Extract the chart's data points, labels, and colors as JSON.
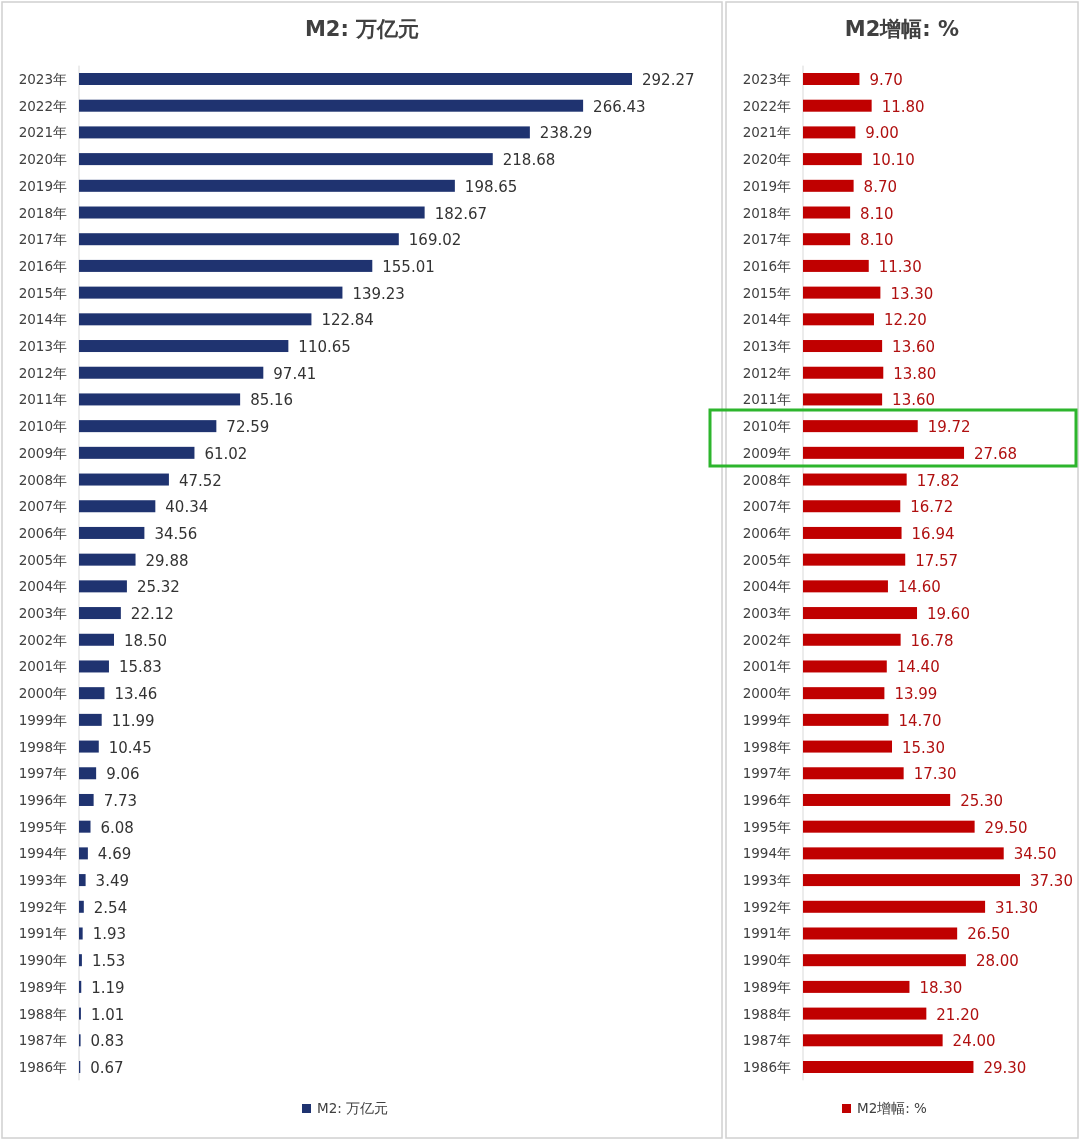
{
  "chart_data": [
    {
      "type": "bar",
      "orientation": "horizontal",
      "title": "M2: 万亿元",
      "legend": "bottom",
      "categories": [
        "2023年",
        "2022年",
        "2021年",
        "2020年",
        "2019年",
        "2018年",
        "2017年",
        "2016年",
        "2015年",
        "2014年",
        "2013年",
        "2012年",
        "2011年",
        "2010年",
        "2009年",
        "2008年",
        "2007年",
        "2006年",
        "2005年",
        "2004年",
        "2003年",
        "2002年",
        "2001年",
        "2000年",
        "1999年",
        "1998年",
        "1997年",
        "1996年",
        "1995年",
        "1994年",
        "1993年",
        "1992年",
        "1991年",
        "1990年",
        "1989年",
        "1988年",
        "1987年",
        "1986年"
      ],
      "series": [
        {
          "name": "M2: 万亿元",
          "color": "#1f3370",
          "values": [
            292.27,
            266.43,
            238.29,
            218.68,
            198.65,
            182.67,
            169.02,
            155.01,
            139.23,
            122.84,
            110.65,
            97.41,
            85.16,
            72.59,
            61.02,
            47.52,
            40.34,
            34.56,
            29.88,
            25.32,
            22.12,
            18.5,
            15.83,
            13.46,
            11.99,
            10.45,
            9.06,
            7.73,
            6.08,
            4.69,
            3.49,
            2.54,
            1.93,
            1.53,
            1.19,
            1.01,
            0.83,
            0.67
          ],
          "value_labels": [
            "292.27",
            "266.43",
            "238.29",
            "218.68",
            "198.65",
            "182.67",
            "169.02",
            "155.01",
            "139.23",
            "122.84",
            "110.65",
            "97.41",
            "85.16",
            "72.59",
            "61.02",
            "47.52",
            "40.34",
            "34.56",
            "29.88",
            "25.32",
            "22.12",
            "18.50",
            "15.83",
            "13.46",
            "11.99",
            "10.45",
            "9.06",
            "7.73",
            "6.08",
            "4.69",
            "3.49",
            "2.54",
            "1.93",
            "1.53",
            "1.19",
            "1.01",
            "0.83",
            "0.67"
          ]
        }
      ]
    },
    {
      "type": "bar",
      "orientation": "horizontal",
      "title": "M2增幅: %",
      "legend": "bottom",
      "categories": [
        "2023年",
        "2022年",
        "2021年",
        "2020年",
        "2019年",
        "2018年",
        "2017年",
        "2016年",
        "2015年",
        "2014年",
        "2013年",
        "2012年",
        "2011年",
        "2010年",
        "2009年",
        "2008年",
        "2007年",
        "2006年",
        "2005年",
        "2004年",
        "2003年",
        "2002年",
        "2001年",
        "2000年",
        "1999年",
        "1998年",
        "1997年",
        "1996年",
        "1995年",
        "1994年",
        "1993年",
        "1992年",
        "1991年",
        "1990年",
        "1989年",
        "1988年",
        "1987年",
        "1986年"
      ],
      "series": [
        {
          "name": "M2增幅: %",
          "color": "#c00000",
          "values": [
            9.7,
            11.8,
            9.0,
            10.1,
            8.7,
            8.1,
            8.1,
            11.3,
            13.3,
            12.2,
            13.6,
            13.8,
            13.6,
            19.72,
            27.68,
            17.82,
            16.72,
            16.94,
            17.57,
            14.6,
            19.6,
            16.78,
            14.4,
            13.99,
            14.7,
            15.3,
            17.3,
            25.3,
            29.5,
            34.5,
            37.3,
            31.3,
            26.5,
            28.0,
            18.3,
            21.2,
            24.0,
            29.3
          ],
          "value_labels": [
            "9.70",
            "11.80",
            "9.00",
            "10.10",
            "8.70",
            "8.10",
            "8.10",
            "11.30",
            "13.30",
            "12.20",
            "13.60",
            "13.80",
            "13.60",
            "19.72",
            "27.68",
            "17.82",
            "16.72",
            "16.94",
            "17.57",
            "14.60",
            "19.60",
            "16.78",
            "14.40",
            "13.99",
            "14.70",
            "15.30",
            "17.30",
            "25.30",
            "29.50",
            "34.50",
            "37.30",
            "31.30",
            "26.50",
            "28.00",
            "18.30",
            "21.20",
            "24.00",
            "29.30"
          ]
        }
      ]
    }
  ]
}
